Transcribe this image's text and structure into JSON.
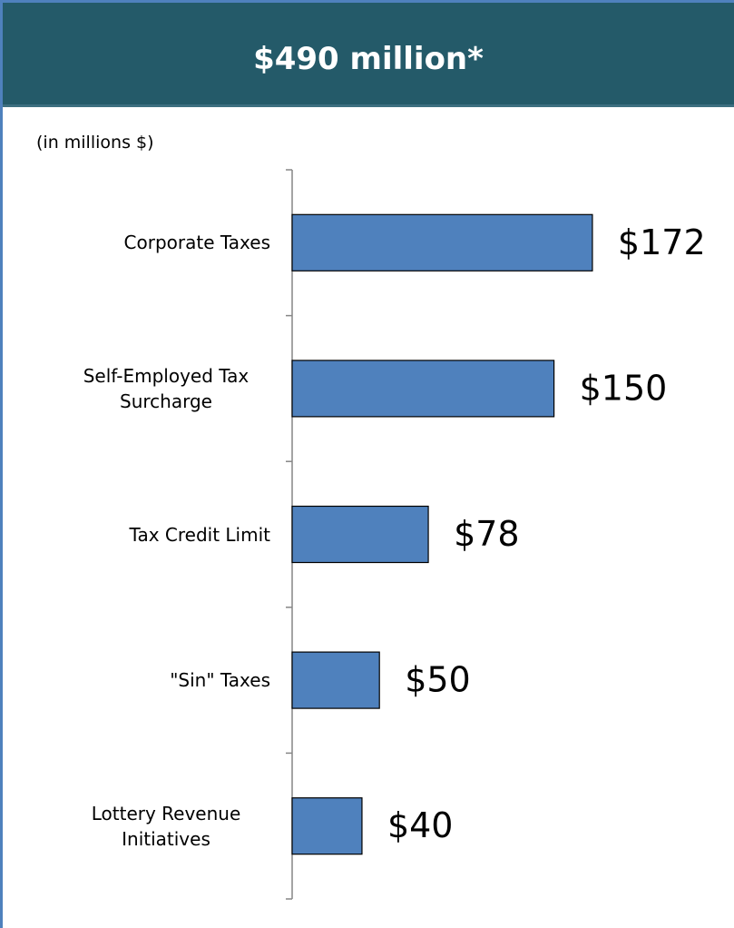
{
  "chart_data": {
    "type": "bar",
    "orientation": "horizontal",
    "title": "$490 million*",
    "subtitle": "(in millions $)",
    "categories": [
      "Corporate Taxes",
      "Self-Employed Tax Surcharge",
      "Tax Credit Limit",
      "\"Sin\" Taxes",
      "Lottery Revenue Initiatives"
    ],
    "values": [
      172,
      150,
      78,
      50,
      40
    ],
    "value_labels": [
      "$172",
      "$150",
      "$78",
      "$50",
      "$40"
    ],
    "color": "#4f81bd",
    "xlim": [
      0,
      250
    ]
  }
}
